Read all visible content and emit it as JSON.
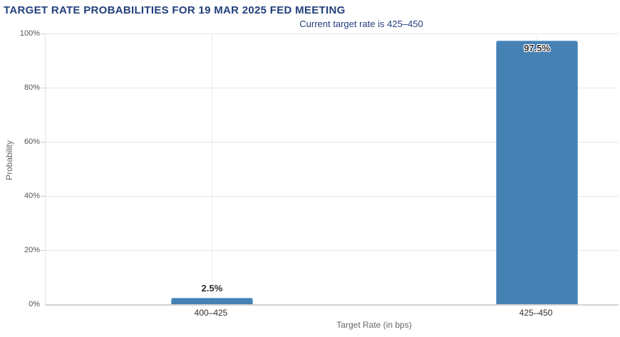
{
  "title": "TARGET RATE PROBABILITIES FOR 19 MAR 2025 FED MEETING",
  "subtitle": "Current target rate is 425–450",
  "chart_data": {
    "type": "bar",
    "categories": [
      "400–425",
      "425–450"
    ],
    "values": [
      2.5,
      97.5
    ],
    "value_labels": [
      "2.5%",
      "97.5%"
    ],
    "title": "TARGET RATE PROBABILITIES FOR 19 MAR 2025 FED MEETING",
    "subtitle": "Current target rate is 425–450",
    "xlabel": "Target Rate (in bps)",
    "ylabel": "Probability",
    "ylim": [
      0,
      100
    ],
    "yticks": [
      "0%",
      "20%",
      "40%",
      "60%",
      "80%",
      "100%"
    ],
    "grid": true,
    "legend": "none",
    "bar_color": "#4681b4",
    "title_color": "#23407c",
    "gridline_color": "#e6e6e6"
  }
}
